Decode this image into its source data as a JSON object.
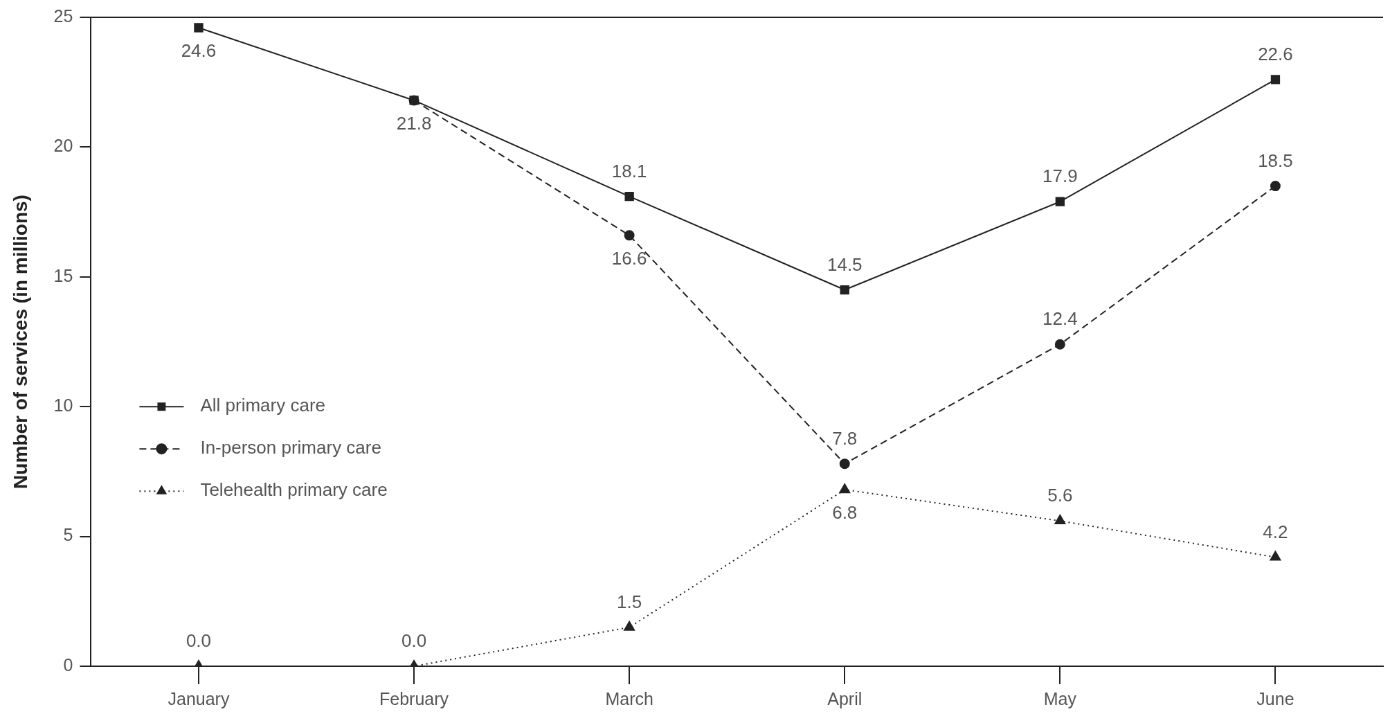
{
  "chart_data": {
    "type": "line",
    "ylabel": "Number of services (in millions)",
    "categories": [
      "January",
      "February",
      "March",
      "April",
      "May",
      "June"
    ],
    "series": [
      {
        "name": "All primary care",
        "color": "#222222",
        "marker": "square",
        "line_style": "solid",
        "values": [
          24.6,
          21.8,
          18.1,
          14.5,
          17.9,
          22.6
        ],
        "value_labels": [
          "24.6",
          "21.8",
          "18.1",
          "14.5",
          "17.9",
          "22.6"
        ]
      },
      {
        "name": "In-person primary care",
        "color": "#222222",
        "marker": "circle",
        "line_style": "dashed",
        "values": [
          null,
          21.8,
          16.6,
          7.8,
          12.4,
          18.5
        ],
        "value_labels": [
          null,
          null,
          "16.6",
          "7.8",
          "12.4",
          "18.5"
        ]
      },
      {
        "name": "Telehealth primary care",
        "color": "#222222",
        "marker": "triangle",
        "line_style": "dotted",
        "values": [
          0.0,
          0.0,
          1.5,
          6.8,
          5.6,
          4.2
        ],
        "value_labels": [
          "0.0",
          "0.0",
          "1.5",
          "6.8",
          "5.6",
          "4.2"
        ]
      }
    ],
    "ylim": [
      0,
      25
    ],
    "yticks": [
      0,
      5,
      10,
      15,
      20,
      25
    ],
    "grid": false,
    "legend": "left"
  }
}
